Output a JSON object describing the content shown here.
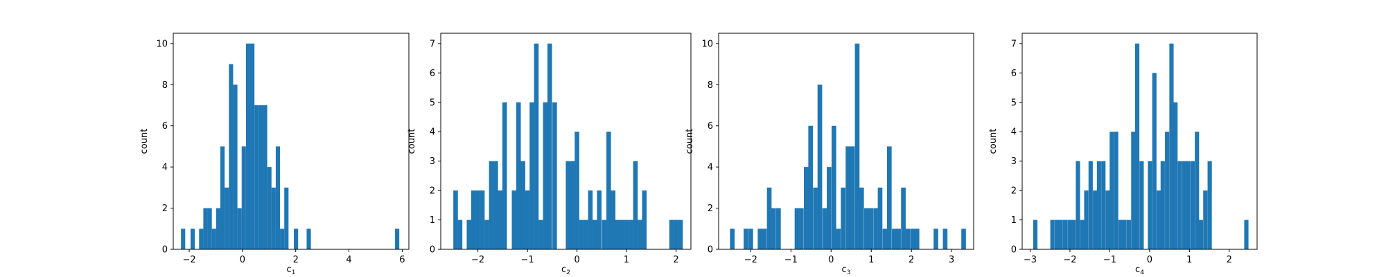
{
  "chart_data": [
    {
      "type": "bar",
      "xlabel": "c",
      "xlabel_sub": "1",
      "ylabel": "count",
      "xlim": [
        -2.6,
        6.25
      ],
      "ylim": [
        0,
        10.5
      ],
      "xticks": [
        -2,
        0,
        2,
        4,
        6
      ],
      "yticks": [
        0,
        2,
        4,
        6,
        8,
        10
      ],
      "bin_width": 0.16,
      "bars": [
        {
          "x": -2.23,
          "count": 1
        },
        {
          "x": -1.87,
          "count": 1
        },
        {
          "x": -1.55,
          "count": 1
        },
        {
          "x": -1.39,
          "count": 2
        },
        {
          "x": -1.23,
          "count": 2
        },
        {
          "x": -1.07,
          "count": 1
        },
        {
          "x": -0.91,
          "count": 2
        },
        {
          "x": -0.75,
          "count": 5
        },
        {
          "x": -0.59,
          "count": 3
        },
        {
          "x": -0.43,
          "count": 9
        },
        {
          "x": -0.27,
          "count": 8
        },
        {
          "x": -0.11,
          "count": 2
        },
        {
          "x": 0.05,
          "count": 5
        },
        {
          "x": 0.21,
          "count": 10
        },
        {
          "x": 0.37,
          "count": 10
        },
        {
          "x": 0.53,
          "count": 7
        },
        {
          "x": 0.69,
          "count": 7
        },
        {
          "x": 0.85,
          "count": 7
        },
        {
          "x": 1.01,
          "count": 4
        },
        {
          "x": 1.17,
          "count": 3
        },
        {
          "x": 1.33,
          "count": 5
        },
        {
          "x": 1.49,
          "count": 1
        },
        {
          "x": 1.65,
          "count": 3
        },
        {
          "x": 2.01,
          "count": 1
        },
        {
          "x": 2.49,
          "count": 1
        },
        {
          "x": 5.81,
          "count": 1
        }
      ]
    },
    {
      "type": "bar",
      "xlabel": "c",
      "xlabel_sub": "2",
      "ylabel": "count",
      "xlim": [
        -2.75,
        2.3
      ],
      "ylim": [
        0,
        7.35
      ],
      "xticks": [
        -2,
        -1,
        0,
        1,
        2
      ],
      "yticks": [
        0,
        1,
        2,
        3,
        4,
        5,
        6,
        7
      ],
      "bin_width": 0.092,
      "bars": [
        {
          "x": -2.45,
          "count": 2
        },
        {
          "x": -2.36,
          "count": 1
        },
        {
          "x": -2.18,
          "count": 1
        },
        {
          "x": -2.09,
          "count": 2
        },
        {
          "x": -2.0,
          "count": 2
        },
        {
          "x": -1.91,
          "count": 2
        },
        {
          "x": -1.82,
          "count": 1
        },
        {
          "x": -1.73,
          "count": 3
        },
        {
          "x": -1.64,
          "count": 3
        },
        {
          "x": -1.55,
          "count": 2
        },
        {
          "x": -1.46,
          "count": 5
        },
        {
          "x": -1.27,
          "count": 2
        },
        {
          "x": -1.18,
          "count": 5
        },
        {
          "x": -1.09,
          "count": 3
        },
        {
          "x": -1.0,
          "count": 2
        },
        {
          "x": -0.91,
          "count": 5
        },
        {
          "x": -0.82,
          "count": 7
        },
        {
          "x": -0.73,
          "count": 1
        },
        {
          "x": -0.64,
          "count": 5
        },
        {
          "x": -0.55,
          "count": 7
        },
        {
          "x": -0.45,
          "count": 5
        },
        {
          "x": -0.18,
          "count": 3
        },
        {
          "x": -0.09,
          "count": 3
        },
        {
          "x": 0.0,
          "count": 4
        },
        {
          "x": 0.09,
          "count": 1
        },
        {
          "x": 0.18,
          "count": 1
        },
        {
          "x": 0.27,
          "count": 2
        },
        {
          "x": 0.36,
          "count": 1
        },
        {
          "x": 0.45,
          "count": 2
        },
        {
          "x": 0.55,
          "count": 1
        },
        {
          "x": 0.64,
          "count": 4
        },
        {
          "x": 0.73,
          "count": 2
        },
        {
          "x": 0.82,
          "count": 1
        },
        {
          "x": 0.91,
          "count": 1
        },
        {
          "x": 1.0,
          "count": 1
        },
        {
          "x": 1.09,
          "count": 1
        },
        {
          "x": 1.18,
          "count": 3
        },
        {
          "x": 1.27,
          "count": 1
        },
        {
          "x": 1.36,
          "count": 2
        },
        {
          "x": 1.91,
          "count": 1
        },
        {
          "x": 2.0,
          "count": 1
        },
        {
          "x": 2.09,
          "count": 1
        }
      ]
    },
    {
      "type": "bar",
      "xlabel": "c",
      "xlabel_sub": "3",
      "ylabel": "count",
      "xlim": [
        -2.8,
        3.55
      ],
      "ylim": [
        0,
        10.5
      ],
      "xticks": [
        -2,
        -1,
        0,
        1,
        2,
        3
      ],
      "yticks": [
        0,
        2,
        4,
        6,
        8,
        10
      ],
      "bin_width": 0.115,
      "bars": [
        {
          "x": -2.46,
          "count": 1
        },
        {
          "x": -2.12,
          "count": 1
        },
        {
          "x": -2.0,
          "count": 1
        },
        {
          "x": -1.77,
          "count": 1
        },
        {
          "x": -1.66,
          "count": 1
        },
        {
          "x": -1.54,
          "count": 3
        },
        {
          "x": -1.43,
          "count": 2
        },
        {
          "x": -1.31,
          "count": 2
        },
        {
          "x": -0.85,
          "count": 2
        },
        {
          "x": -0.74,
          "count": 2
        },
        {
          "x": -0.62,
          "count": 4
        },
        {
          "x": -0.51,
          "count": 6
        },
        {
          "x": -0.39,
          "count": 3
        },
        {
          "x": -0.28,
          "count": 8
        },
        {
          "x": -0.16,
          "count": 2
        },
        {
          "x": -0.05,
          "count": 4
        },
        {
          "x": 0.07,
          "count": 6
        },
        {
          "x": 0.18,
          "count": 1
        },
        {
          "x": 0.3,
          "count": 3
        },
        {
          "x": 0.42,
          "count": 5
        },
        {
          "x": 0.53,
          "count": 5
        },
        {
          "x": 0.65,
          "count": 10
        },
        {
          "x": 0.76,
          "count": 3
        },
        {
          "x": 0.88,
          "count": 2
        },
        {
          "x": 0.99,
          "count": 2
        },
        {
          "x": 1.11,
          "count": 2
        },
        {
          "x": 1.22,
          "count": 3
        },
        {
          "x": 1.34,
          "count": 1
        },
        {
          "x": 1.45,
          "count": 5
        },
        {
          "x": 1.57,
          "count": 1
        },
        {
          "x": 1.68,
          "count": 1
        },
        {
          "x": 1.8,
          "count": 3
        },
        {
          "x": 1.91,
          "count": 1
        },
        {
          "x": 2.03,
          "count": 1
        },
        {
          "x": 2.14,
          "count": 1
        },
        {
          "x": 2.61,
          "count": 1
        },
        {
          "x": 2.84,
          "count": 1
        },
        {
          "x": 3.3,
          "count": 1
        }
      ]
    },
    {
      "type": "bar",
      "xlabel": "c",
      "xlabel_sub": "4",
      "ylabel": "count",
      "xlim": [
        -3.2,
        2.7
      ],
      "ylim": [
        0,
        7.35
      ],
      "xticks": [
        -3,
        -2,
        -1,
        0,
        1,
        2
      ],
      "yticks": [
        0,
        1,
        2,
        3,
        4,
        5,
        6,
        7
      ],
      "bin_width": 0.107,
      "bars": [
        {
          "x": -2.87,
          "count": 1
        },
        {
          "x": -2.44,
          "count": 1
        },
        {
          "x": -2.33,
          "count": 1
        },
        {
          "x": -2.23,
          "count": 1
        },
        {
          "x": -2.12,
          "count": 1
        },
        {
          "x": -2.01,
          "count": 1
        },
        {
          "x": -1.91,
          "count": 1
        },
        {
          "x": -1.8,
          "count": 3
        },
        {
          "x": -1.69,
          "count": 1
        },
        {
          "x": -1.59,
          "count": 2
        },
        {
          "x": -1.48,
          "count": 3
        },
        {
          "x": -1.37,
          "count": 2
        },
        {
          "x": -1.27,
          "count": 3
        },
        {
          "x": -1.16,
          "count": 3
        },
        {
          "x": -1.05,
          "count": 2
        },
        {
          "x": -0.95,
          "count": 4
        },
        {
          "x": -0.84,
          "count": 4
        },
        {
          "x": -0.73,
          "count": 1
        },
        {
          "x": -0.63,
          "count": 1
        },
        {
          "x": -0.52,
          "count": 1
        },
        {
          "x": -0.41,
          "count": 4
        },
        {
          "x": -0.31,
          "count": 7
        },
        {
          "x": -0.2,
          "count": 3
        },
        {
          "x": 0.01,
          "count": 3
        },
        {
          "x": 0.12,
          "count": 6
        },
        {
          "x": 0.23,
          "count": 2
        },
        {
          "x": 0.33,
          "count": 3
        },
        {
          "x": 0.44,
          "count": 4
        },
        {
          "x": 0.55,
          "count": 7
        },
        {
          "x": 0.65,
          "count": 5
        },
        {
          "x": 0.76,
          "count": 3
        },
        {
          "x": 0.87,
          "count": 3
        },
        {
          "x": 0.97,
          "count": 3
        },
        {
          "x": 1.08,
          "count": 3
        },
        {
          "x": 1.19,
          "count": 4
        },
        {
          "x": 1.29,
          "count": 1
        },
        {
          "x": 1.4,
          "count": 2
        },
        {
          "x": 1.51,
          "count": 3
        },
        {
          "x": 2.43,
          "count": 1
        }
      ]
    }
  ],
  "colors": {
    "bar": "#1f77b4",
    "frame": "#000000",
    "background": "#ffffff"
  }
}
